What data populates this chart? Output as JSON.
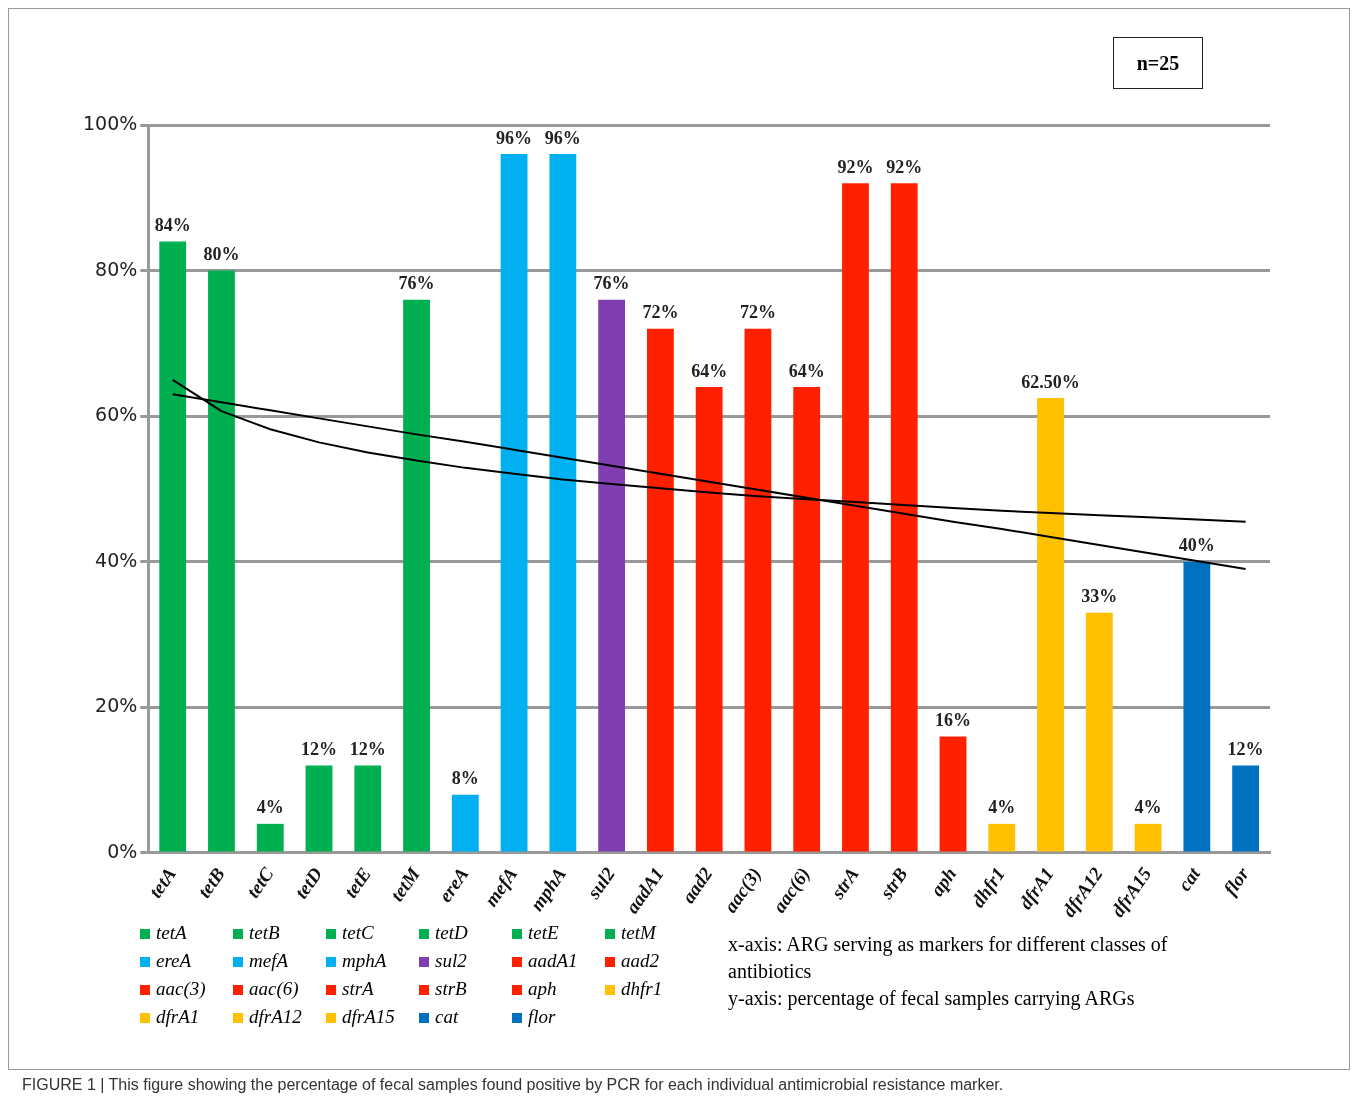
{
  "chart_data": {
    "type": "bar",
    "categories": [
      "tetA",
      "tetB",
      "tetC",
      "tetD",
      "tetE",
      "tetM",
      "ereA",
      "mefA",
      "mphA",
      "sul2",
      "aadA1",
      "aad2",
      "aac(3)",
      "aac(6)",
      "strA",
      "strB",
      "aph",
      "dhfr1",
      "dfrA1",
      "dfrA12",
      "dfrA15",
      "cat",
      "flor"
    ],
    "series": [
      {
        "values": [
          84,
          80,
          4,
          12,
          12,
          76,
          8,
          96,
          96,
          76,
          72,
          64,
          72,
          64,
          92,
          92,
          16,
          4,
          62.5,
          33,
          4,
          40,
          12
        ],
        "value_labels": [
          "84%",
          "80%",
          "4%",
          "12%",
          "12%",
          "76%",
          "8%",
          "96%",
          "96%",
          "76%",
          "72%",
          "64%",
          "72%",
          "64%",
          "92%",
          "92%",
          "16%",
          "4%",
          "62.50%",
          "33%",
          "4%",
          "40%",
          "12%"
        ],
        "colors": [
          "#00b050",
          "#00b050",
          "#00b050",
          "#00b050",
          "#00b050",
          "#00b050",
          "#00b0f0",
          "#00b0f0",
          "#00b0f0",
          "#7f3fb0",
          "#ff2000",
          "#ff2000",
          "#ff2000",
          "#ff2000",
          "#ff2000",
          "#ff2000",
          "#ff2000",
          "#ffc000",
          "#ffc000",
          "#ffc000",
          "#ffc000",
          "#0070c0",
          "#0070c0"
        ]
      },
      {
        "type": "line",
        "color": "#000000",
        "values": [
          63,
          61.9,
          60.8,
          59.7,
          58.6,
          57.5,
          56.5,
          55.4,
          54.3,
          53.2,
          52.1,
          51.0,
          49.9,
          48.8,
          47.7,
          46.6,
          45.5,
          44.5,
          43.4,
          42.3,
          41.2,
          40.1,
          39.0
        ]
      },
      {
        "type": "line",
        "color": "#000000",
        "values": [
          65,
          60.7,
          58.2,
          56.4,
          55.0,
          53.9,
          52.9,
          52.1,
          51.3,
          50.7,
          50.1,
          49.5,
          49.0,
          48.6,
          48.2,
          47.8,
          47.4,
          47.0,
          46.7,
          46.4,
          46.1,
          45.8,
          45.5
        ]
      }
    ],
    "ylim": [
      0,
      100
    ],
    "yticks": [
      {
        "value": 0,
        "label": "0%"
      },
      {
        "value": 20,
        "label": "20%"
      },
      {
        "value": 40,
        "label": "40%"
      },
      {
        "value": 60,
        "label": "60%"
      },
      {
        "value": 80,
        "label": "80%"
      },
      {
        "value": 100,
        "label": "100%"
      }
    ],
    "grid": "y",
    "marker": "none",
    "annotations": [
      "n=25",
      "x-axis: ARG serving as markers for different classes of antibiotics",
      "y-axis: percentage of fecal samples carrying ARGs",
      "FIGURE 1 | This figure showing the percentage of fecal samples found positive by PCR for each individual antimicrobial resistance marker."
    ]
  }
}
